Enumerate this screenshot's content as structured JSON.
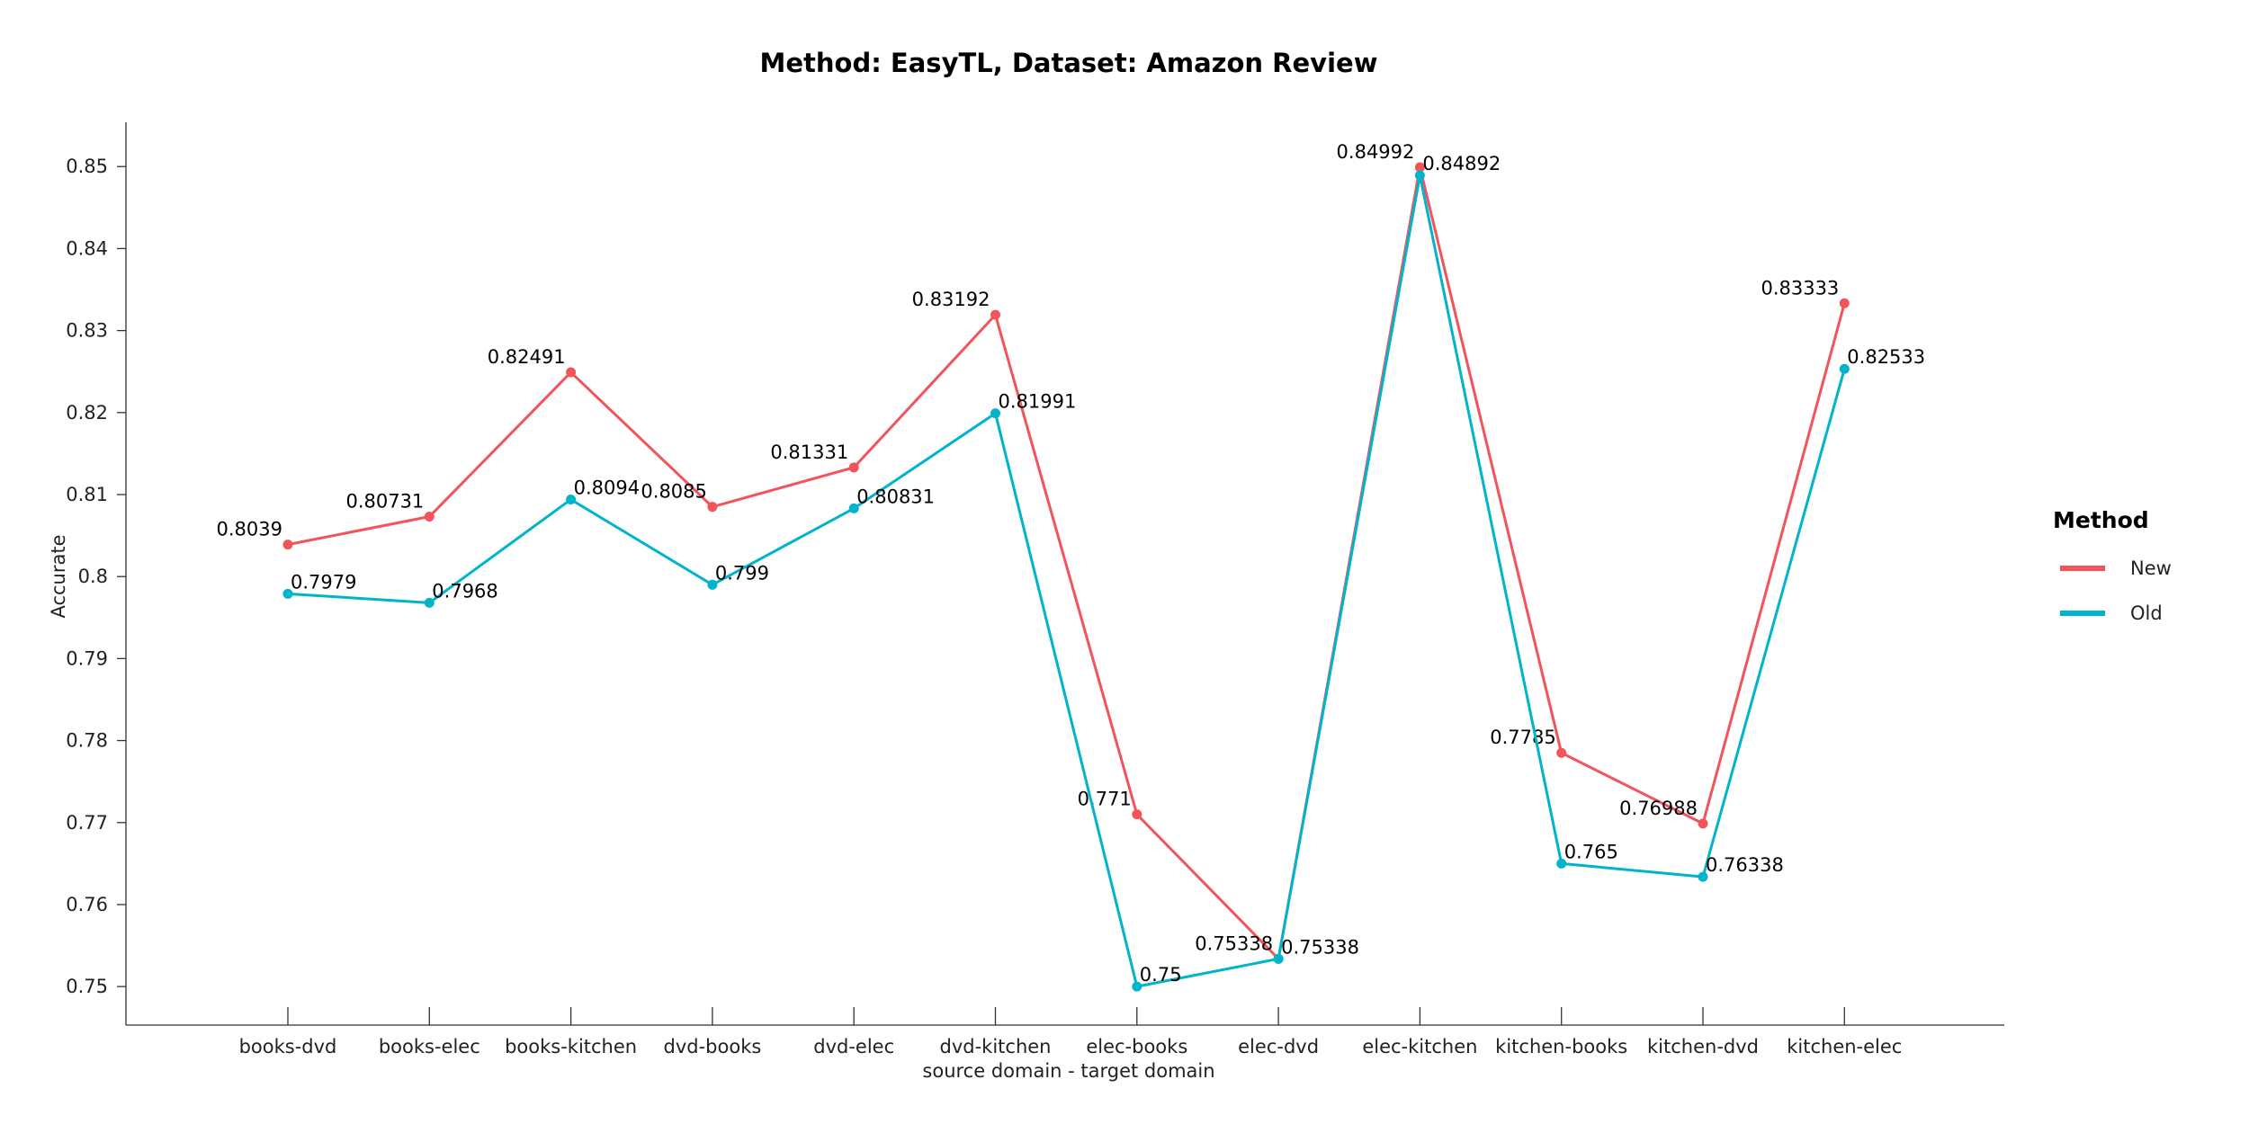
{
  "chart_data": {
    "type": "line",
    "title": "Method: EasyTL, Dataset: Amazon Review",
    "xlabel": "source domain - target domain",
    "ylabel": "Accurate",
    "categories": [
      "books-dvd",
      "books-elec",
      "books-kitchen",
      "dvd-books",
      "dvd-elec",
      "dvd-kitchen",
      "elec-books",
      "elec-dvd",
      "elec-kitchen",
      "kitchen-books",
      "kitchen-dvd",
      "kitchen-elec"
    ],
    "ylim": [
      0.7453,
      0.8554
    ],
    "yticks": [
      0.75,
      0.76,
      0.77,
      0.78,
      0.79,
      0.8,
      0.81,
      0.82,
      0.83,
      0.84,
      0.85
    ],
    "ytick_labels": [
      "0.75",
      "0.76",
      "0.77",
      "0.78",
      "0.79",
      "0.8",
      "0.81",
      "0.82",
      "0.83",
      "0.84",
      "0.85"
    ],
    "grid": false,
    "legend": {
      "title": "Method",
      "position": "right"
    },
    "series": [
      {
        "name": "New",
        "color": "#f2545b",
        "values": [
          0.8039,
          0.80731,
          0.82491,
          0.8085,
          0.81331,
          0.83192,
          0.771,
          0.75338,
          0.84992,
          0.7785,
          0.76988,
          0.83333
        ],
        "labels": [
          "0.8039",
          "0.80731",
          "0.82491",
          "0.8085",
          "0.81331",
          "0.83192",
          "0.771",
          "0.75338",
          "0.84992",
          "0.7785",
          "0.76988",
          "0.83333"
        ]
      },
      {
        "name": "Old",
        "color": "#00b4cc",
        "values": [
          0.7979,
          0.7968,
          0.8094,
          0.799,
          0.80831,
          0.81991,
          0.75,
          0.75338,
          0.84892,
          0.765,
          0.76338,
          0.82533
        ],
        "labels": [
          "0.7979",
          "0.7968",
          "0.8094",
          "0.799",
          "0.80831",
          "0.81991",
          "0.75",
          "0.75338",
          "0.84892",
          "0.765",
          "0.76338",
          "0.82533"
        ]
      }
    ]
  }
}
